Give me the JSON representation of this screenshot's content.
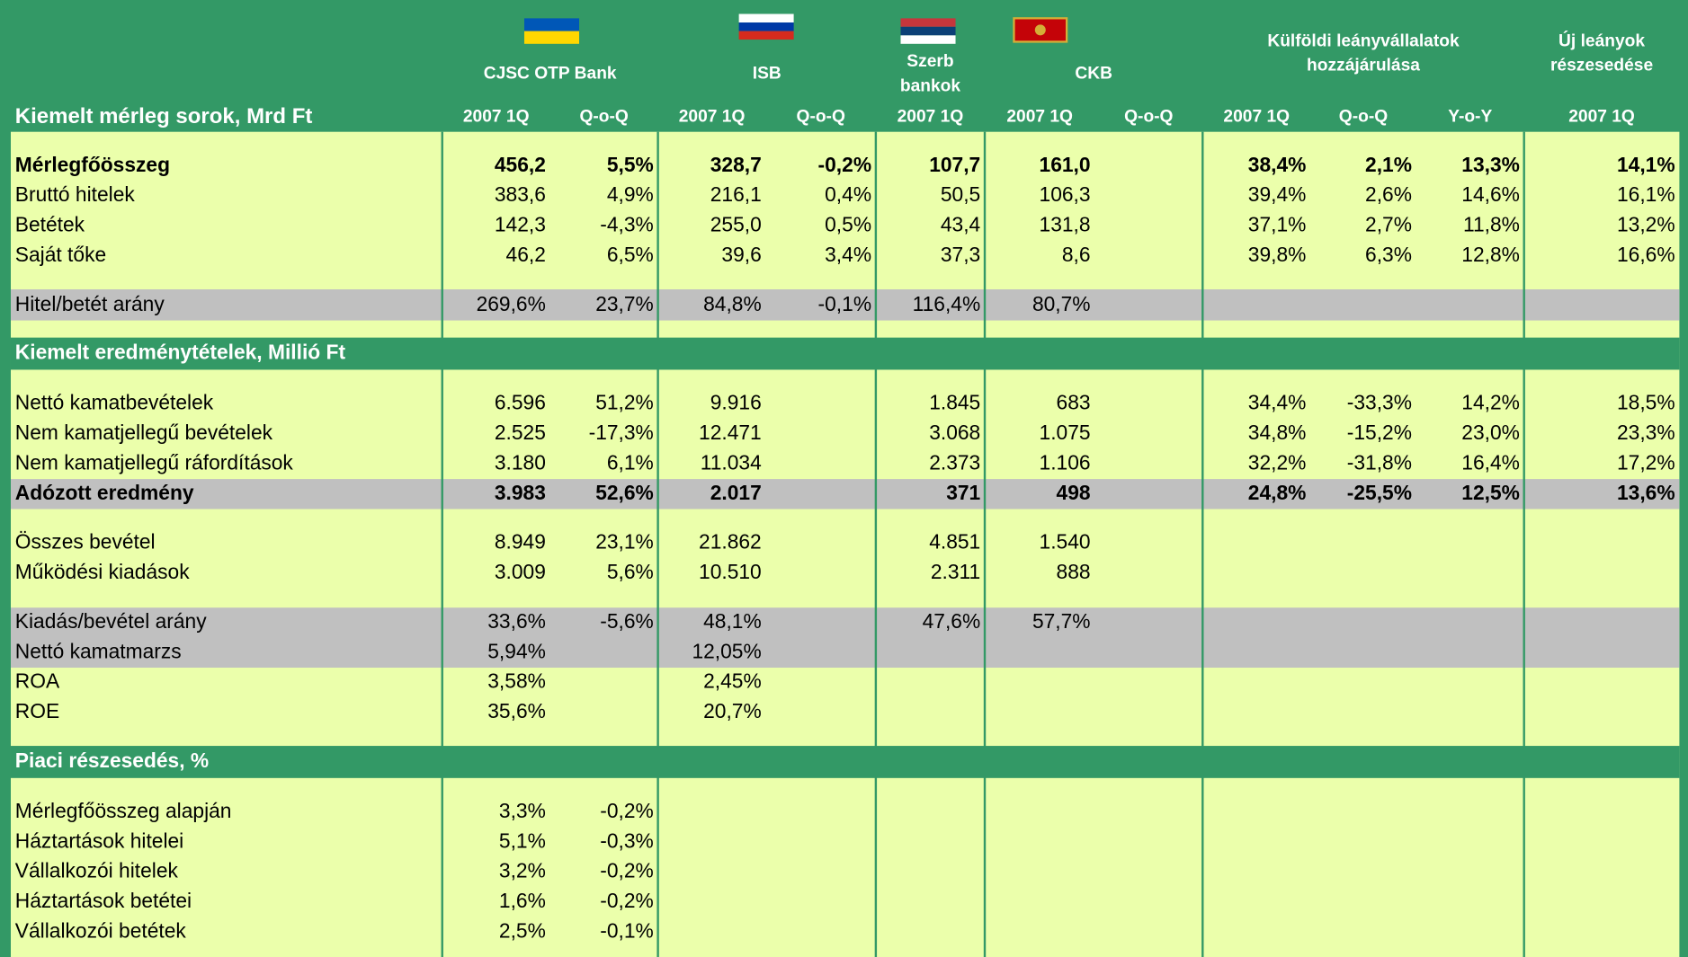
{
  "header": {
    "title": "Kiemelt mérleg sorok, Mrd Ft",
    "groups": [
      {
        "name": "CJSC OTP Bank",
        "columns": [
          "2007 1Q",
          "Q-o-Q"
        ]
      },
      {
        "name": "ISB",
        "columns": [
          "2007 1Q",
          "Q-o-Q"
        ]
      },
      {
        "name": "Szerb bankok",
        "columns": [
          "2007 1Q"
        ]
      },
      {
        "name": "CKB",
        "columns": [
          "2007 1Q",
          "Q-o-Q"
        ]
      },
      {
        "name": "Külföldi leányvállalatok hozzájárulása",
        "columns": [
          "2007 1Q",
          "Q-o-Q",
          "Y-o-Y"
        ]
      },
      {
        "name": "Új leányok részesedése",
        "columns": [
          "2007 1Q"
        ]
      }
    ]
  },
  "sections": [
    {
      "rows": [
        {
          "label": "Mérlegfőösszeg",
          "cells": [
            "456,2",
            "5,5%",
            "328,7",
            "-0,2%",
            "107,7",
            "161,0",
            null,
            "38,4%",
            "2,1%",
            "13,3%",
            "14,1%"
          ]
        },
        {
          "label": "Bruttó hitelek",
          "cells": [
            "383,6",
            "4,9%",
            "216,1",
            "0,4%",
            "50,5",
            "106,3",
            null,
            "39,4%",
            "2,6%",
            "14,6%",
            "16,1%"
          ]
        },
        {
          "label": "Betétek",
          "cells": [
            "142,3",
            "-4,3%",
            "255,0",
            "0,5%",
            "43,4",
            "131,8",
            null,
            "37,1%",
            "2,7%",
            "11,8%",
            "13,2%"
          ]
        },
        {
          "label": "Saját tőke",
          "cells": [
            "46,2",
            "6,5%",
            "39,6",
            "3,4%",
            "37,3",
            "8,6",
            null,
            "39,8%",
            "6,3%",
            "12,8%",
            "16,6%"
          ]
        },
        {
          "label": "Hitel/betét arány",
          "cells": [
            "269,6%",
            "23,7%",
            "84,8%",
            "-0,1%",
            "116,4%",
            "80,7%",
            null,
            null,
            null,
            null,
            null
          ]
        }
      ]
    },
    {
      "title": "Kiemelt eredménytételek, Millió Ft",
      "rows": [
        {
          "label": "Nettó kamatbevételek",
          "cells": [
            "6.596",
            "51,2%",
            "9.916",
            null,
            "1.845",
            "683",
            null,
            "34,4%",
            "-33,3%",
            "14,2%",
            "18,5%"
          ]
        },
        {
          "label": "Nem kamatjellegű bevételek",
          "cells": [
            "2.525",
            "-17,3%",
            "12.471",
            null,
            "3.068",
            "1.075",
            null,
            "34,8%",
            "-15,2%",
            "23,0%",
            "23,3%"
          ]
        },
        {
          "label": "Nem kamatjellegű ráfordítások",
          "cells": [
            "3.180",
            "6,1%",
            "11.034",
            null,
            "2.373",
            "1.106",
            null,
            "32,2%",
            "-31,8%",
            "16,4%",
            "17,2%"
          ]
        },
        {
          "label": "Adózott eredmény",
          "cells": [
            "3.983",
            "52,6%",
            "2.017",
            null,
            "371",
            "498",
            null,
            "24,8%",
            "-25,5%",
            "12,5%",
            "13,6%"
          ]
        },
        {
          "label": "Összes bevétel",
          "cells": [
            "8.949",
            "23,1%",
            "21.862",
            null,
            "4.851",
            "1.540",
            null,
            null,
            null,
            null,
            null
          ]
        },
        {
          "label": "Működési kiadások",
          "cells": [
            "3.009",
            "5,6%",
            "10.510",
            null,
            "2.311",
            "888",
            null,
            null,
            null,
            null,
            null
          ]
        },
        {
          "label": "Kiadás/bevétel arány",
          "cells": [
            "33,6%",
            "-5,6%",
            "48,1%",
            null,
            "47,6%",
            "57,7%",
            null,
            null,
            null,
            null,
            null
          ]
        },
        {
          "label": "Nettó kamatmarzs",
          "cells": [
            "5,94%",
            null,
            "12,05%",
            null,
            null,
            null,
            null,
            null,
            null,
            null,
            null
          ]
        },
        {
          "label": "ROA",
          "cells": [
            "3,58%",
            null,
            "2,45%",
            null,
            null,
            null,
            null,
            null,
            null,
            null,
            null
          ]
        },
        {
          "label": "ROE",
          "cells": [
            "35,6%",
            null,
            "20,7%",
            null,
            null,
            null,
            null,
            null,
            null,
            null,
            null
          ]
        }
      ]
    },
    {
      "title": "Piaci részesedés, %",
      "rows": [
        {
          "label": "Mérlegfőösszeg alapján",
          "cells": [
            "3,3%",
            "-0,2%",
            null,
            null,
            null,
            null,
            null,
            null,
            null,
            null,
            null
          ]
        },
        {
          "label": "Háztartások hitelei",
          "cells": [
            "5,1%",
            "-0,3%",
            null,
            null,
            null,
            null,
            null,
            null,
            null,
            null,
            null
          ]
        },
        {
          "label": "Vállalkozói hitelek",
          "cells": [
            "3,2%",
            "-0,2%",
            null,
            null,
            null,
            null,
            null,
            null,
            null,
            null,
            null
          ]
        },
        {
          "label": "Háztartások betétei",
          "cells": [
            "1,6%",
            "-0,2%",
            null,
            null,
            null,
            null,
            null,
            null,
            null,
            null,
            null
          ]
        },
        {
          "label": "Vállalkozói betétek",
          "cells": [
            "2,5%",
            "-0,1%",
            null,
            null,
            null,
            null,
            null,
            null,
            null,
            null,
            null
          ]
        }
      ]
    }
  ]
}
